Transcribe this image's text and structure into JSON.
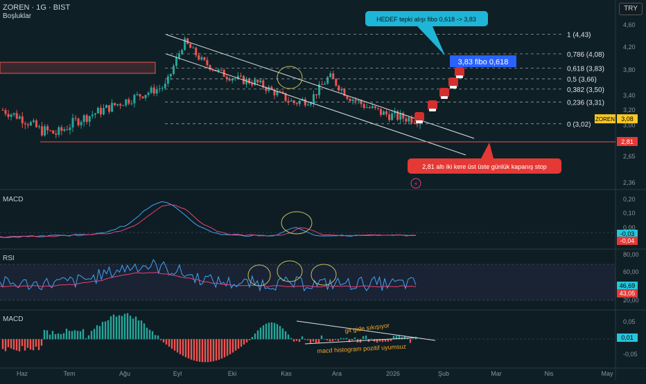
{
  "header": {
    "symbol": "ZOREN · 1G · BIST",
    "sub": "Boşluklar",
    "currency": "TRY"
  },
  "colors": {
    "bg": "#0f1f26",
    "up": "#26a69a",
    "down": "#ef5350",
    "rsiLine": "#42a5f5",
    "rsiMa": "#ec407a"
  },
  "chart_data": [
    {
      "type": "line",
      "title": "ZOREN · 1G · BIST",
      "x_labels": [
        "Haz",
        "Tem",
        "Ağu",
        "Eyl",
        "Eki",
        "Kas",
        "Ara",
        "2026",
        "Şub",
        "Mar",
        "Nis",
        "May"
      ],
      "y_ticks": [
        4.6,
        4.2,
        3.8,
        3.4,
        3.2,
        3.0,
        2.65,
        2.36
      ],
      "y_tick_labels": [
        "4,60",
        "4,20",
        "3,80",
        "3,40",
        "3,20",
        "3,00",
        "2,65",
        "2,36"
      ],
      "price_series": [
        {
          "x": "Haz",
          "y": 3.2
        },
        {
          "x": "Haz",
          "y": 3.1
        },
        {
          "x": "Haz",
          "y": 2.95
        },
        {
          "x": "Haz",
          "y": 2.9
        },
        {
          "x": "Tem",
          "y": 3.05
        },
        {
          "x": "Tem",
          "y": 3.15
        },
        {
          "x": "Tem",
          "y": 3.25
        },
        {
          "x": "Ağu",
          "y": 3.35
        },
        {
          "x": "Ağu",
          "y": 3.45
        },
        {
          "x": "Ağu",
          "y": 3.55
        },
        {
          "x": "Eyl",
          "y": 4.3
        },
        {
          "x": "Eyl",
          "y": 3.95
        },
        {
          "x": "Eyl",
          "y": 3.75
        },
        {
          "x": "Eyl",
          "y": 3.65
        },
        {
          "x": "Eki",
          "y": 3.6
        },
        {
          "x": "Eki",
          "y": 3.45
        },
        {
          "x": "Eki",
          "y": 3.3
        },
        {
          "x": "Kas",
          "y": 3.35
        },
        {
          "x": "Kas",
          "y": 3.7
        },
        {
          "x": "Kas",
          "y": 3.4
        },
        {
          "x": "Ara",
          "y": 3.25
        },
        {
          "x": "Ara",
          "y": 3.15
        },
        {
          "x": "2026",
          "y": 3.1
        },
        {
          "x": "2026",
          "y": 3.08
        }
      ],
      "fib_levels": [
        {
          "label": "1 (4,43)",
          "value": 4.43
        },
        {
          "label": "0,786 (4,08)",
          "value": 4.08
        },
        {
          "label": "0,618 (3,83)",
          "value": 3.83
        },
        {
          "label": "0,5 (3,66)",
          "value": 3.66
        },
        {
          "label": "0,382 (3,50)",
          "value": 3.5
        },
        {
          "label": "0,236 (3,31)",
          "value": 3.31
        },
        {
          "label": "0 (3,02)",
          "value": 3.02
        }
      ],
      "price_badges": [
        {
          "label": "3,08",
          "value": 3.08,
          "tag": "ZOREN"
        },
        {
          "label": "2,81",
          "value": 2.81
        }
      ],
      "annotations": {
        "target": "HEDEF tepki alışı fibo 0,618 -> 3,83",
        "fibo_box": "3,83 fibo 0,618",
        "stop": "2,81 altı iki kere üst üste günlük kapanış stop"
      }
    },
    {
      "type": "line",
      "title": "MACD",
      "y_tick_labels": [
        "0,20",
        "0,10",
        "0,00"
      ],
      "badges": [
        "-0,03",
        "-0,04"
      ]
    },
    {
      "type": "line",
      "title": "RSI",
      "y_tick_labels": [
        "80,00",
        "60,00",
        "20,00"
      ],
      "badges": [
        "46,69",
        "43,05"
      ]
    },
    {
      "type": "bar",
      "title": "MACD",
      "y_tick_labels": [
        "0,05",
        "-0,05"
      ],
      "badges": [
        "0,01"
      ],
      "annotations": [
        "git gide sıkışıyor",
        "macd histogram pozitif uyumsuz"
      ]
    }
  ]
}
